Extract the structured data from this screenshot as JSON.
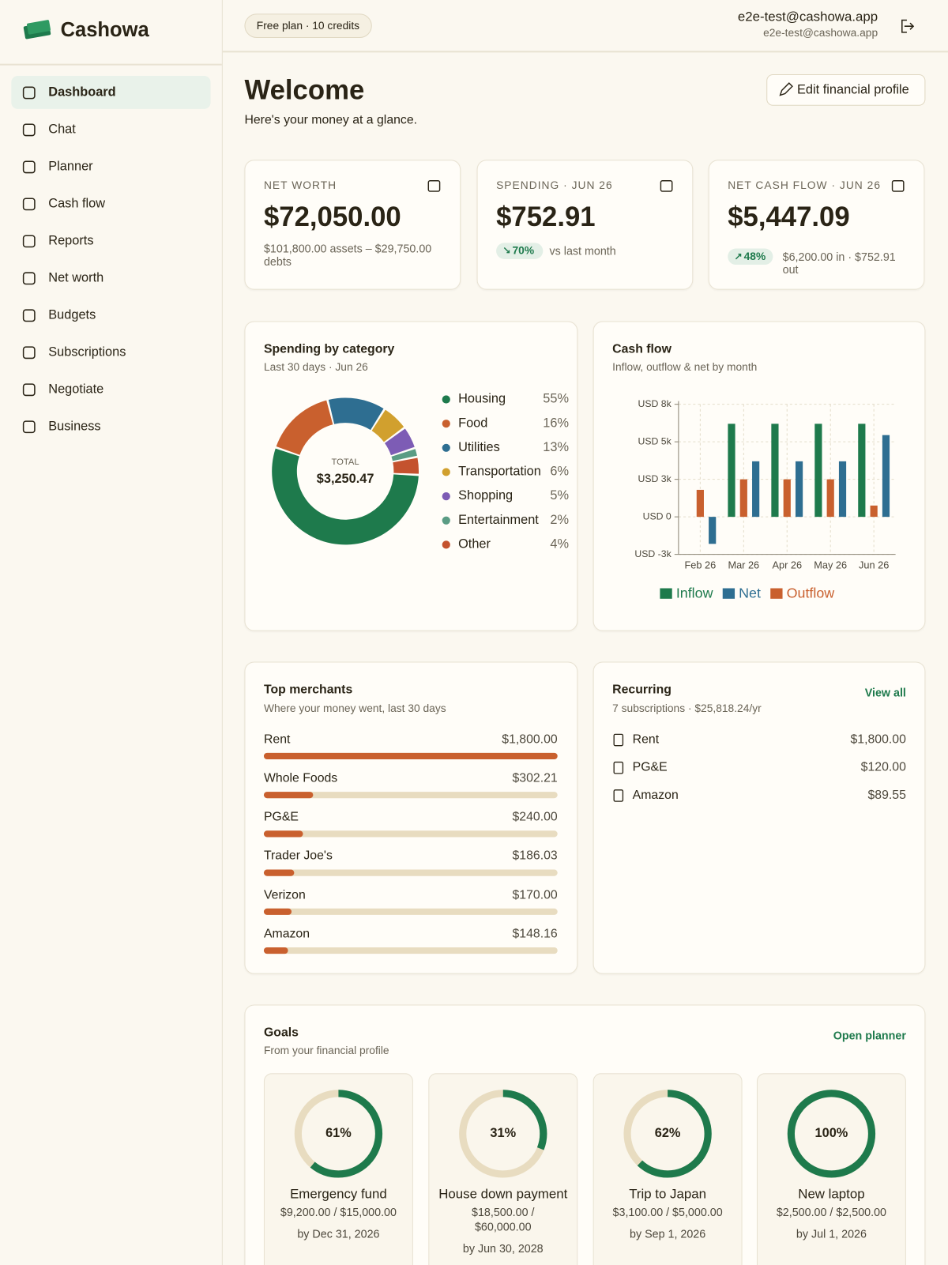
{
  "sidebar": {
    "brand": "Cashowa",
    "nav": [
      "Dashboard",
      "Chat",
      "Planner",
      "Cash flow",
      "Reports",
      "Net worth",
      "Budgets",
      "Subscriptions",
      "Negotiate",
      "Business"
    ]
  },
  "header": {
    "plan": "Free plan · 10 credits",
    "user_name": "e2e-test@cashowa.app",
    "user_email": "e2e-test@cashowa.app"
  },
  "welcome": {
    "title": "Welcome",
    "subtitle": "Here's your money at a glance.",
    "edit_button": "Edit financial profile"
  },
  "stats": [
    {
      "label": "NET WORTH",
      "value": "$72,050.00",
      "detail": "$101,800.00 assets – $29,750.00 debts"
    },
    {
      "label": "SPENDING · JUN 26",
      "value": "$752.91",
      "badge": "70%",
      "detail": "vs last month"
    },
    {
      "label": "NET CASH FLOW · JUN 26",
      "value": "$5,447.09",
      "badge": "48%",
      "detail": "$6,200.00 in · $752.91 out"
    }
  ],
  "spending_by_category": {
    "type": "pie",
    "title": "Spending by category",
    "subtitle": "Last 30 days · Jun 26",
    "total_label": "TOTAL",
    "total": "$3,250.47",
    "categories": [
      "Housing",
      "Food",
      "Utilities",
      "Transportation",
      "Shopping",
      "Entertainment",
      "Other"
    ],
    "values": [
      55,
      16,
      13,
      6,
      5,
      2,
      4
    ],
    "value_labels": [
      "55%",
      "16%",
      "13%",
      "6%",
      "5%",
      "2%",
      "4%"
    ],
    "colors": [
      "#1e7a4c",
      "#c9602e",
      "#2e6e91",
      "#d1a02e",
      "#7d5cb5",
      "#5a9c84",
      "#c4522e"
    ]
  },
  "cash_flow": {
    "type": "bar",
    "title": "Cash flow",
    "subtitle": "Inflow, outflow & net by month",
    "categories": [
      "Feb 26",
      "Mar 26",
      "Apr 26",
      "May 26",
      "Jun 26"
    ],
    "series": [
      {
        "name": "Inflow",
        "color": "#1e7a4c",
        "values": [
          0,
          6200,
          6200,
          6200,
          6200
        ]
      },
      {
        "name": "Net",
        "color": "#2e6e91",
        "values": [
          -1800,
          3700,
          3700,
          3700,
          5447.09
        ]
      },
      {
        "name": "Outflow",
        "color": "#c9602e",
        "values": [
          1800,
          2500,
          2500,
          2500,
          752.91
        ]
      }
    ],
    "ylim": [
      -2500,
      7500
    ],
    "yticks": [
      {
        "value": -2500,
        "label": "USD -3k"
      },
      {
        "value": 0,
        "label": "USD 0"
      },
      {
        "value": 2500,
        "label": "USD 3k"
      },
      {
        "value": 5000,
        "label": "USD 5k"
      },
      {
        "value": 7500,
        "label": "USD 8k"
      }
    ],
    "grid": true
  },
  "top_merchants": {
    "title": "Top merchants",
    "subtitle": "Where your money went, last 30 days",
    "categories": [
      "Rent",
      "Whole Foods",
      "PG&E",
      "Trader Joe's",
      "Verizon",
      "Amazon"
    ],
    "values": [
      1800,
      302.21,
      240,
      186.03,
      170,
      148.16
    ],
    "value_labels": [
      "$1,800.00",
      "$302.21",
      "$240.00",
      "$186.03",
      "$170.00",
      "$148.16"
    ]
  },
  "recurring": {
    "title": "Recurring",
    "subtitle": "7 subscriptions · $25,818.24/yr",
    "link": "View all",
    "items": [
      {
        "name": "Rent",
        "amount": "$1,800.00"
      },
      {
        "name": "PG&E",
        "amount": "$120.00"
      },
      {
        "name": "Amazon",
        "amount": "$89.55"
      }
    ]
  },
  "goals": {
    "title": "Goals",
    "subtitle": "From your financial profile",
    "link": "Open planner",
    "names": [
      "Emergency fund",
      "House down payment",
      "Trip to Japan",
      "New laptop"
    ],
    "values": [
      61,
      31,
      62,
      100
    ],
    "value_labels": [
      "61%",
      "31%",
      "62%",
      "100%"
    ],
    "amounts": [
      "$9,200.00 / $15,000.00",
      "$18,500.00 / $60,000.00",
      "$3,100.00 / $5,000.00",
      "$2,500.00 / $2,500.00"
    ],
    "dates": [
      "by Dec 31, 2026",
      "by Jun 30, 2028",
      "by Sep 1, 2026",
      "by Jul 1, 2026"
    ]
  }
}
